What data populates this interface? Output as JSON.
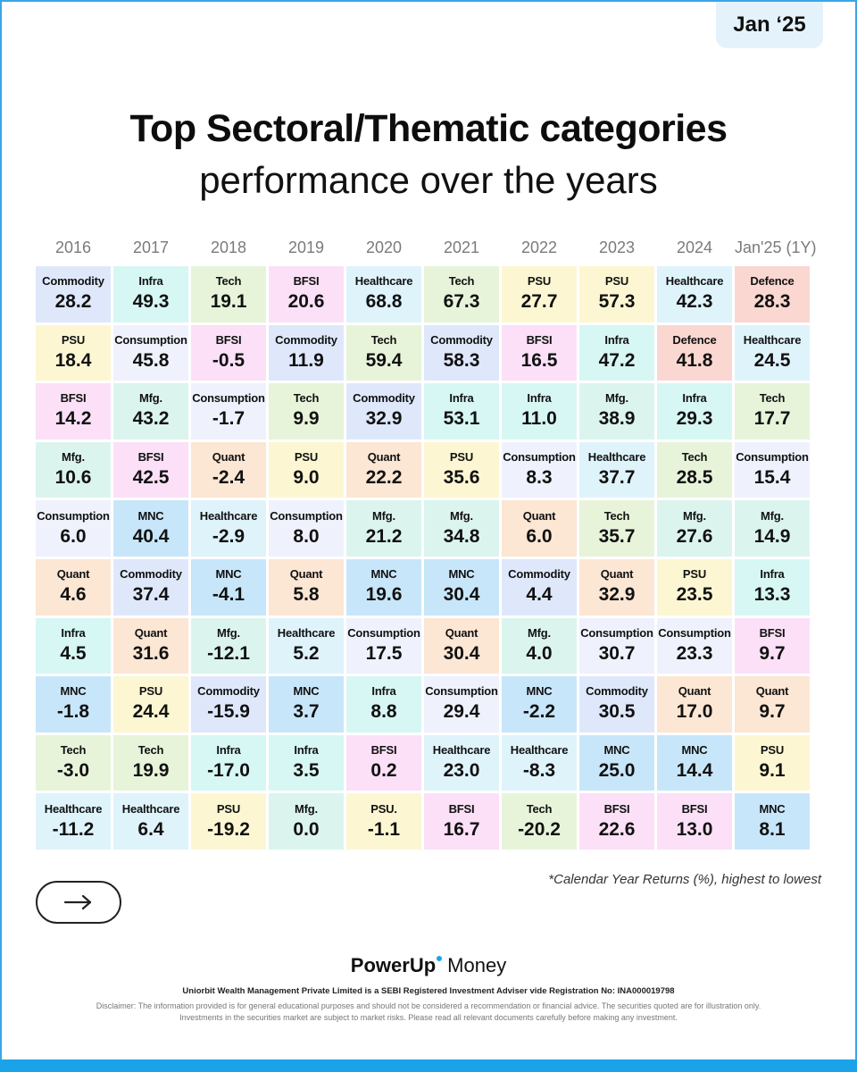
{
  "badge": "Jan ‘25",
  "title": "Top Sectoral/Thematic categories",
  "subtitle": "performance over the years",
  "footnote": "*Calendar Year Returns (%), highest to lowest",
  "brand": {
    "name_bold": "PowerUp",
    "name_regular": "Money"
  },
  "registration": "Uniorbit Wealth Management Private Limited is a SEBI Registered Investment Adviser vide Registration No: INA000019798",
  "disclaimer": "Disclaimer: The information provided is for general educational purposes and should not be considered a recommendation or financial advice. The securities quoted are for illustration only. Investments in the securities market are subject to market risks. Please read all relevant documents carefully before making any investment.",
  "icons": {
    "next": "arrow-right-icon"
  },
  "colors": {
    "Commodity": "#dfe8fb",
    "Infra": "#d6f7f4",
    "Tech": "#e7f4da",
    "BFSI": "#fbe0f7",
    "Healthcare": "#dff3fb",
    "PSU": "#fcf7d2",
    "Defence": "#fbd7d1",
    "Consumption": "#eff2fc",
    "Mfg.": "#dbf5ee",
    "Quant": "#fce6d4",
    "MNC": "#c8e6fa",
    "PSU.": "#fcf7d2"
  },
  "chart_data": {
    "type": "table",
    "title": "Top Sectoral/Thematic categories performance over the years",
    "columns": [
      {
        "year": "2016",
        "entries": [
          {
            "name": "Commodity",
            "value": "28.2"
          },
          {
            "name": "PSU",
            "value": "18.4"
          },
          {
            "name": "BFSI",
            "value": "14.2"
          },
          {
            "name": "Mfg.",
            "value": "10.6"
          },
          {
            "name": "Consumption",
            "value": "6.0"
          },
          {
            "name": "Quant",
            "value": "4.6"
          },
          {
            "name": "Infra",
            "value": "4.5"
          },
          {
            "name": "MNC",
            "value": "-1.8"
          },
          {
            "name": "Tech",
            "value": "-3.0"
          },
          {
            "name": "Healthcare",
            "value": "-11.2"
          }
        ]
      },
      {
        "year": "2017",
        "entries": [
          {
            "name": "Infra",
            "value": "49.3"
          },
          {
            "name": "Consumption",
            "value": "45.8"
          },
          {
            "name": "Mfg.",
            "value": "43.2"
          },
          {
            "name": "BFSI",
            "value": "42.5"
          },
          {
            "name": "MNC",
            "value": "40.4"
          },
          {
            "name": "Commodity",
            "value": "37.4"
          },
          {
            "name": "Quant",
            "value": "31.6"
          },
          {
            "name": "PSU",
            "value": "24.4"
          },
          {
            "name": "Tech",
            "value": "19.9"
          },
          {
            "name": "Healthcare",
            "value": "6.4"
          }
        ]
      },
      {
        "year": "2018",
        "entries": [
          {
            "name": "Tech",
            "value": "19.1"
          },
          {
            "name": "BFSI",
            "value": "-0.5"
          },
          {
            "name": "Consumption",
            "value": "-1.7"
          },
          {
            "name": "Quant",
            "value": "-2.4"
          },
          {
            "name": "Healthcare",
            "value": "-2.9"
          },
          {
            "name": "MNC",
            "value": "-4.1"
          },
          {
            "name": "Mfg.",
            "value": "-12.1"
          },
          {
            "name": "Commodity",
            "value": "-15.9"
          },
          {
            "name": "Infra",
            "value": "-17.0"
          },
          {
            "name": "PSU",
            "value": "-19.2"
          }
        ]
      },
      {
        "year": "2019",
        "entries": [
          {
            "name": "BFSI",
            "value": "20.6"
          },
          {
            "name": "Commodity",
            "value": "11.9"
          },
          {
            "name": "Tech",
            "value": "9.9"
          },
          {
            "name": "PSU",
            "value": "9.0"
          },
          {
            "name": "Consumption",
            "value": "8.0"
          },
          {
            "name": "Quant",
            "value": "5.8"
          },
          {
            "name": "Healthcare",
            "value": "5.2"
          },
          {
            "name": "MNC",
            "value": "3.7"
          },
          {
            "name": "Infra",
            "value": "3.5"
          },
          {
            "name": "Mfg.",
            "value": "0.0"
          }
        ]
      },
      {
        "year": "2020",
        "entries": [
          {
            "name": "Healthcare",
            "value": "68.8"
          },
          {
            "name": "Tech",
            "value": "59.4"
          },
          {
            "name": "Commodity",
            "value": "32.9"
          },
          {
            "name": "Quant",
            "value": "22.2"
          },
          {
            "name": "Mfg.",
            "value": "21.2"
          },
          {
            "name": "MNC",
            "value": "19.6"
          },
          {
            "name": "Consumption",
            "value": "17.5"
          },
          {
            "name": "Infra",
            "value": "8.8"
          },
          {
            "name": "BFSI",
            "value": "0.2"
          },
          {
            "name": "PSU.",
            "value": "-1.1"
          }
        ]
      },
      {
        "year": "2021",
        "entries": [
          {
            "name": "Tech",
            "value": "67.3"
          },
          {
            "name": "Commodity",
            "value": "58.3"
          },
          {
            "name": "Infra",
            "value": "53.1"
          },
          {
            "name": "PSU",
            "value": "35.6"
          },
          {
            "name": "Mfg.",
            "value": "34.8"
          },
          {
            "name": "MNC",
            "value": "30.4"
          },
          {
            "name": "Quant",
            "value": "30.4"
          },
          {
            "name": "Consumption",
            "value": "29.4"
          },
          {
            "name": "Healthcare",
            "value": "23.0"
          },
          {
            "name": "BFSI",
            "value": "16.7"
          }
        ]
      },
      {
        "year": "2022",
        "entries": [
          {
            "name": "PSU",
            "value": "27.7"
          },
          {
            "name": "BFSI",
            "value": "16.5"
          },
          {
            "name": "Infra",
            "value": "11.0"
          },
          {
            "name": "Consumption",
            "value": "8.3"
          },
          {
            "name": "Quant",
            "value": "6.0"
          },
          {
            "name": "Commodity",
            "value": "4.4"
          },
          {
            "name": "Mfg.",
            "value": "4.0"
          },
          {
            "name": "MNC",
            "value": "-2.2"
          },
          {
            "name": "Healthcare",
            "value": "-8.3"
          },
          {
            "name": "Tech",
            "value": "-20.2"
          }
        ]
      },
      {
        "year": "2023",
        "entries": [
          {
            "name": "PSU",
            "value": "57.3"
          },
          {
            "name": "Infra",
            "value": "47.2"
          },
          {
            "name": "Mfg.",
            "value": "38.9"
          },
          {
            "name": "Healthcare",
            "value": "37.7"
          },
          {
            "name": "Tech",
            "value": "35.7"
          },
          {
            "name": "Quant",
            "value": "32.9"
          },
          {
            "name": "Consumption",
            "value": "30.7"
          },
          {
            "name": "Commodity",
            "value": "30.5"
          },
          {
            "name": "MNC",
            "value": "25.0"
          },
          {
            "name": "BFSI",
            "value": "22.6"
          }
        ]
      },
      {
        "year": "2024",
        "entries": [
          {
            "name": "Healthcare",
            "value": "42.3"
          },
          {
            "name": "Defence",
            "value": "41.8"
          },
          {
            "name": "Infra",
            "value": "29.3"
          },
          {
            "name": "Tech",
            "value": "28.5"
          },
          {
            "name": "Mfg.",
            "value": "27.6"
          },
          {
            "name": "PSU",
            "value": "23.5"
          },
          {
            "name": "Consumption",
            "value": "23.3"
          },
          {
            "name": "Quant",
            "value": "17.0"
          },
          {
            "name": "MNC",
            "value": "14.4"
          },
          {
            "name": "BFSI",
            "value": "13.0"
          }
        ]
      },
      {
        "year": "Jan'25 (1Y)",
        "entries": [
          {
            "name": "Defence",
            "value": "28.3"
          },
          {
            "name": "Healthcare",
            "value": "24.5"
          },
          {
            "name": "Tech",
            "value": "17.7"
          },
          {
            "name": "Consumption",
            "value": "15.4"
          },
          {
            "name": "Mfg.",
            "value": "14.9"
          },
          {
            "name": "Infra",
            "value": "13.3"
          },
          {
            "name": "BFSI",
            "value": "9.7"
          },
          {
            "name": "Quant",
            "value": "9.7"
          },
          {
            "name": "PSU",
            "value": "9.1"
          },
          {
            "name": "MNC",
            "value": "8.1"
          }
        ]
      }
    ]
  }
}
